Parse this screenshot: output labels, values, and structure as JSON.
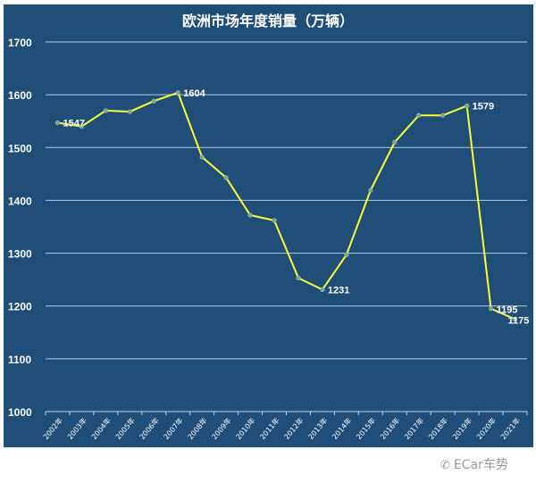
{
  "chart_data": {
    "type": "line",
    "title": "欧洲市场年度销量（万辆）",
    "categories": [
      "2002年",
      "2003年",
      "2004年",
      "2005年",
      "2006年",
      "2007年",
      "2008年",
      "2009年",
      "2010年",
      "2011年",
      "2012年",
      "2013年",
      "2014年",
      "2015年",
      "2016年",
      "2017年",
      "2018年",
      "2019年",
      "2020年",
      "2021年"
    ],
    "series": [
      {
        "values": [
          1547,
          1540,
          1570,
          1568,
          1588,
          1604,
          1482,
          1443,
          1372,
          1362,
          1253,
          1231,
          1297,
          1419,
          1510,
          1561,
          1561,
          1579,
          1195,
          1175
        ]
      }
    ],
    "data_labels": {
      "2002年": "1547",
      "2007年": "1604",
      "2013年": "1231",
      "2019年": "1579",
      "2020年": "1195",
      "2021年": "1175"
    },
    "ylim": [
      1000,
      1700
    ],
    "yticks": [
      "1000",
      "1100",
      "1200",
      "1300",
      "1400",
      "1500",
      "1600",
      "1700"
    ],
    "grid": true,
    "line_color": "#ffff33",
    "marker_color": "#7aa88a",
    "background_color": "#1f4e78"
  },
  "watermark": "ECar车势"
}
